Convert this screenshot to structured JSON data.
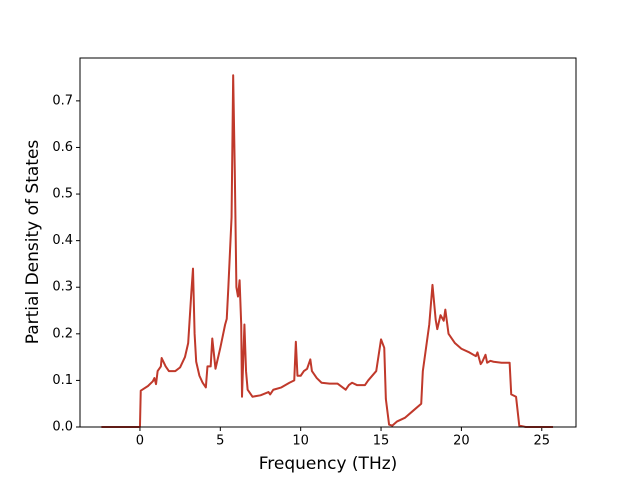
{
  "chart_data": {
    "type": "line",
    "x_label": "Frequency (THz)",
    "y_label": "Partial Density of States",
    "x": [
      -2.4,
      0,
      0.05,
      0.5,
      0.8,
      0.9,
      1.0,
      1.1,
      1.3,
      1.35,
      1.6,
      1.8,
      2.2,
      2.5,
      2.8,
      3.0,
      3.2,
      3.3,
      3.4,
      3.5,
      3.7,
      3.9,
      4.1,
      4.2,
      4.4,
      4.5,
      4.7,
      5.0,
      5.3,
      5.4,
      5.5,
      5.7,
      5.8,
      5.9,
      6.0,
      6.1,
      6.2,
      6.3,
      6.35,
      6.5,
      6.6,
      6.7,
      7.0,
      7.5,
      8.0,
      8.1,
      8.3,
      8.8,
      9.3,
      9.6,
      9.7,
      9.8,
      10.0,
      10.2,
      10.4,
      10.6,
      10.7,
      11.0,
      11.3,
      11.8,
      12.3,
      12.8,
      13.0,
      13.2,
      13.5,
      14.0,
      14.2,
      14.7,
      15.0,
      15.2,
      15.3,
      15.5,
      15.7,
      16.0,
      16.5,
      17.0,
      17.5,
      17.6,
      18.0,
      18.2,
      18.4,
      18.5,
      18.7,
      18.9,
      19.0,
      19.2,
      19.6,
      20.0,
      20.5,
      20.9,
      21.0,
      21.2,
      21.3,
      21.5,
      21.6,
      21.8,
      22.0,
      22.5,
      23.0,
      23.1,
      23.4,
      23.6,
      24.0,
      25.7
    ],
    "series": [
      {
        "color": "#c0392b",
        "values": [
          0,
          0,
          0.078,
          0.088,
          0.098,
          0.105,
          0.092,
          0.12,
          0.13,
          0.148,
          0.13,
          0.12,
          0.12,
          0.128,
          0.15,
          0.18,
          0.29,
          0.34,
          0.2,
          0.14,
          0.11,
          0.095,
          0.085,
          0.13,
          0.13,
          0.19,
          0.125,
          0.17,
          0.22,
          0.232,
          0.3,
          0.45,
          0.755,
          0.55,
          0.3,
          0.28,
          0.315,
          0.22,
          0.065,
          0.22,
          0.12,
          0.08,
          0.065,
          0.068,
          0.075,
          0.07,
          0.08,
          0.085,
          0.095,
          0.1,
          0.183,
          0.11,
          0.11,
          0.12,
          0.125,
          0.145,
          0.12,
          0.105,
          0.095,
          0.093,
          0.093,
          0.08,
          0.09,
          0.095,
          0.09,
          0.09,
          0.1,
          0.12,
          0.188,
          0.17,
          0.06,
          0.005,
          0.003,
          0.012,
          0.02,
          0.035,
          0.05,
          0.12,
          0.22,
          0.305,
          0.23,
          0.21,
          0.24,
          0.228,
          0.252,
          0.2,
          0.18,
          0.168,
          0.16,
          0.152,
          0.16,
          0.135,
          0.14,
          0.155,
          0.138,
          0.142,
          0.14,
          0.138,
          0.138,
          0.07,
          0.065,
          0.003,
          0,
          0
        ]
      }
    ],
    "xlim": [
      -3.73,
      27.13
    ],
    "ylim": [
      0,
      0.792
    ],
    "xticks": [
      0,
      5,
      10,
      15,
      20,
      25
    ],
    "yticks": [
      {
        "value": 0,
        "label": "0.0"
      },
      0.1,
      0.2,
      0.3,
      0.4,
      0.5,
      0.6,
      0.7
    ]
  }
}
